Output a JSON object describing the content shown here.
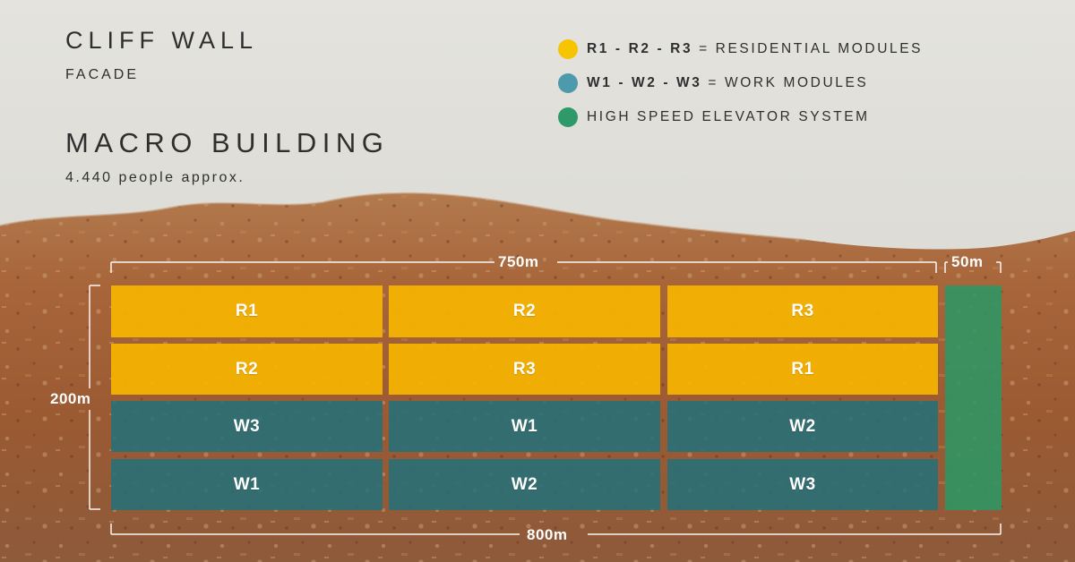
{
  "header": {
    "title": "CLIFF WALL",
    "subtitle": "FACADE",
    "building_title": "MACRO BUILDING",
    "building_subtitle": "4.440 people approx."
  },
  "legend": [
    {
      "key": "R1 - R2 - R3",
      "label": "= RESIDENTIAL MODULES",
      "color": "#f6b800"
    },
    {
      "key": "W1 - W2 - W3",
      "label": "= WORK MODULES",
      "color": "#4c9aac"
    },
    {
      "key": "",
      "label": "HIGH SPEED ELEVATOR SYSTEM",
      "color": "#2e9a6a"
    }
  ],
  "dimensions": {
    "width_top": "750m",
    "width_elevator": "50m",
    "height": "200m",
    "width_bottom": "800m"
  },
  "grid": {
    "rows": [
      [
        "R1",
        "R2",
        "R3"
      ],
      [
        "R2",
        "R3",
        "R1"
      ],
      [
        "W3",
        "W1",
        "W2"
      ],
      [
        "W1",
        "W2",
        "W3"
      ]
    ]
  },
  "colors": {
    "residential": "#f6b400",
    "work": "#23707a",
    "elevator": "#2e9664"
  }
}
